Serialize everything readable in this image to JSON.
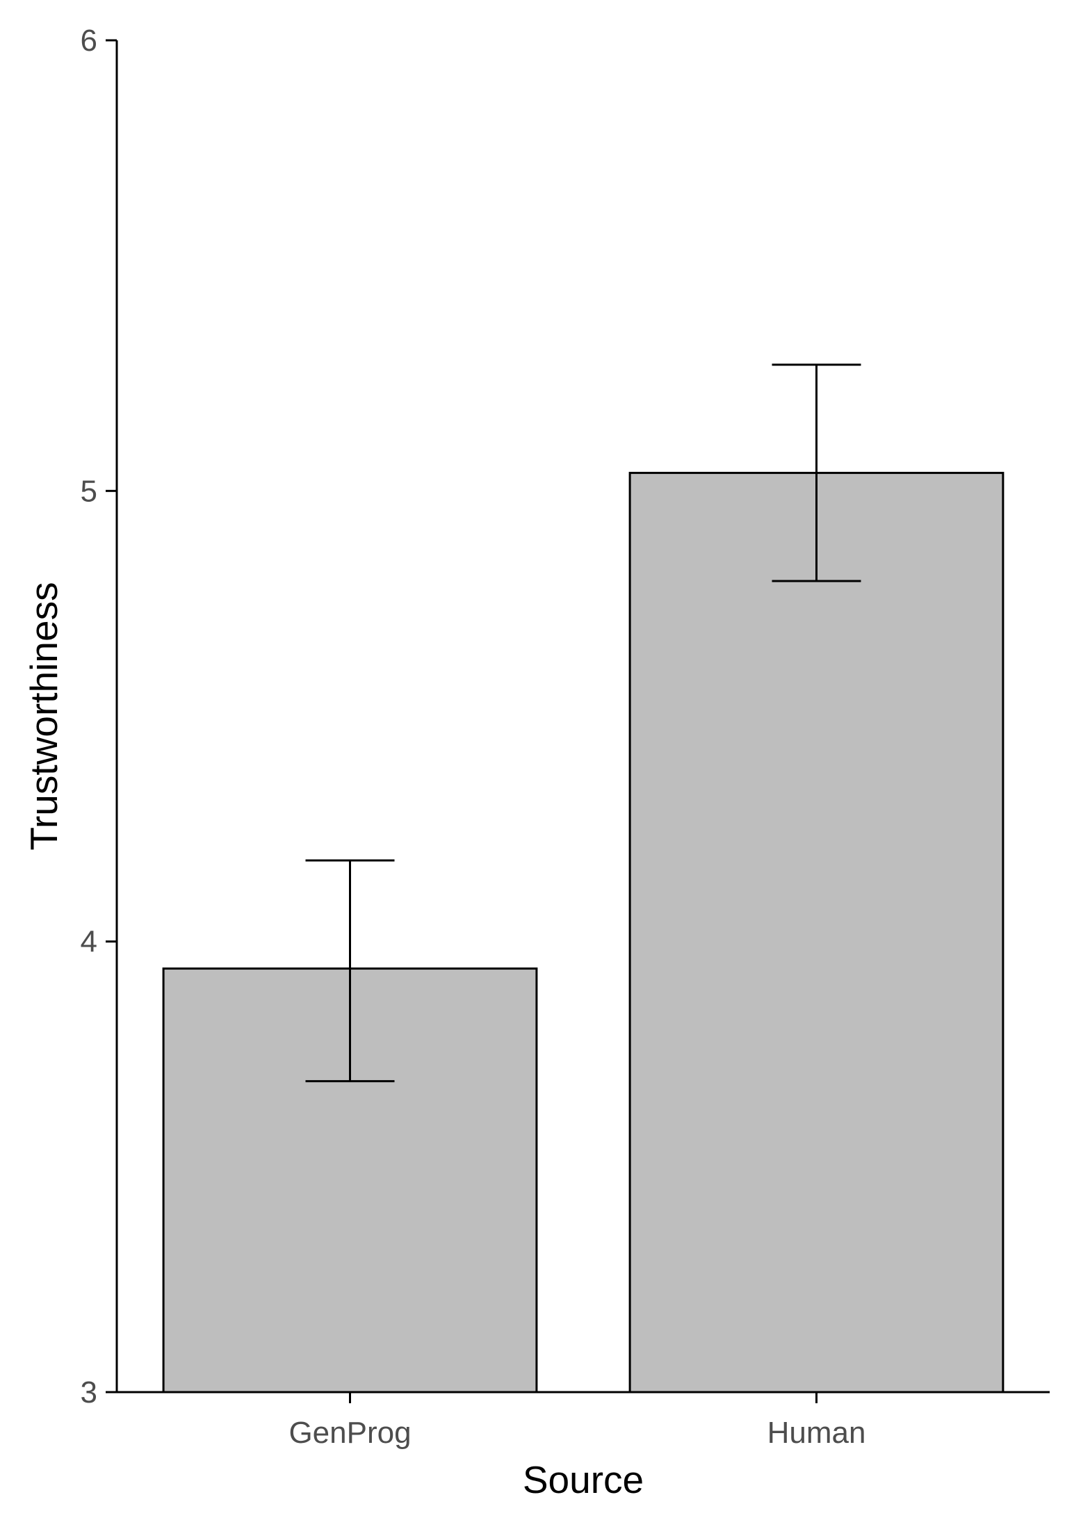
{
  "chart_data": {
    "type": "bar",
    "title": "",
    "xlabel": "Source",
    "ylabel": "Trustworthiness",
    "categories": [
      "GenProg",
      "Human"
    ],
    "values": [
      3.94,
      5.04
    ],
    "error_bars": [
      {
        "lower": 3.69,
        "upper": 4.18
      },
      {
        "lower": 4.8,
        "upper": 5.28
      }
    ],
    "ylim": [
      3,
      6
    ],
    "yticks": [
      "3",
      "4",
      "5",
      "6"
    ],
    "grid": false,
    "legend": "none",
    "colors": {
      "bar_fill": "#bebebe",
      "bar_stroke": "#000000",
      "axis": "#000000",
      "tick_label": "#4d4d4d"
    }
  }
}
